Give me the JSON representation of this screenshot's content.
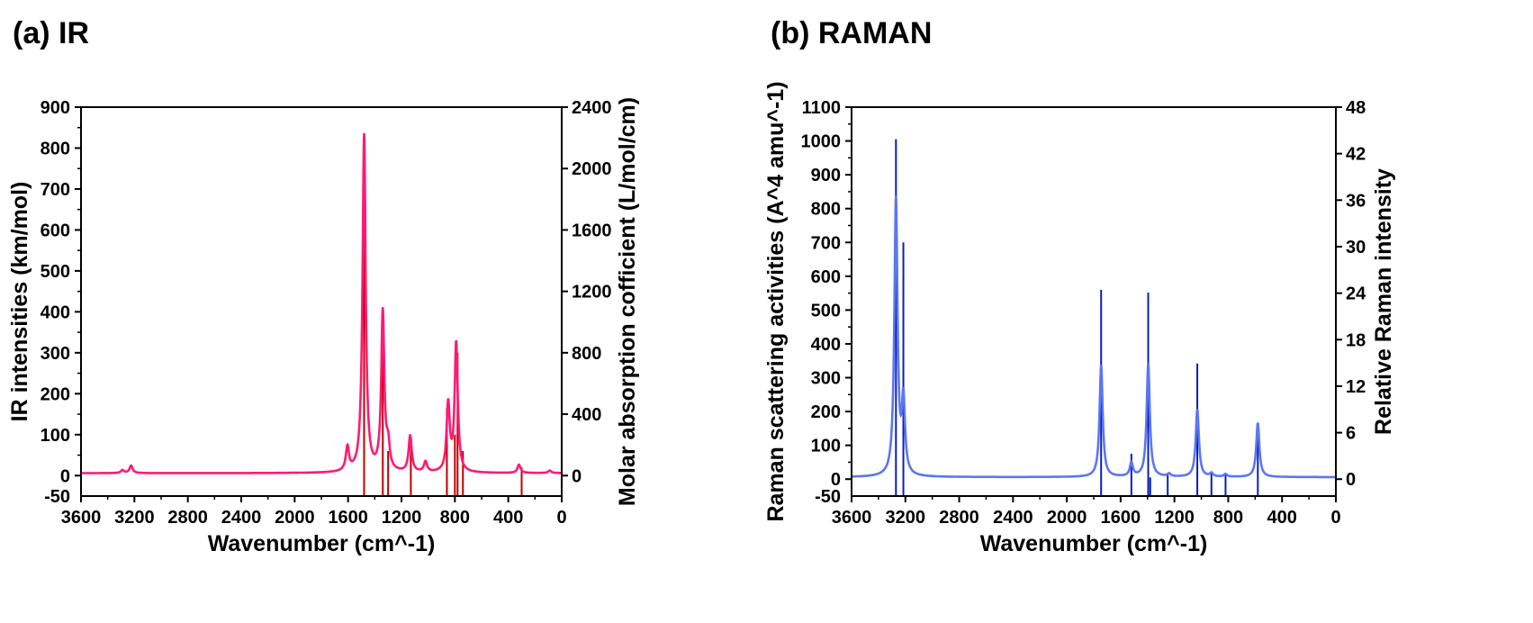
{
  "panels": {
    "a_label": "(a) IR",
    "b_label": "(b) RAMAN"
  },
  "chart_data": [
    {
      "type": "line",
      "title": "(a) IR",
      "xlabel": "Wavenumber (cm^-1)",
      "ylabel": "IR intensities (km/mol)",
      "y2label": "Molar absorption cofficient (L/mol/cm)",
      "xlim": [
        3600,
        0
      ],
      "ylim": [
        -50,
        900
      ],
      "y2lim": [
        -133.3,
        2400
      ],
      "xticks": [
        3600,
        3200,
        2800,
        2400,
        2000,
        1600,
        1200,
        800,
        400,
        0
      ],
      "yticks": [
        0,
        100,
        200,
        300,
        400,
        500,
        600,
        700,
        800,
        900
      ],
      "y2ticks": [
        0,
        400,
        800,
        1200,
        1600,
        2000,
        2400
      ],
      "colors": {
        "curve": "#ff1a75",
        "sticks": "#c00000"
      },
      "grid": false,
      "series": [
        {
          "kind": "curve",
          "peaks": [
            {
              "x": 3290,
              "y": 7
            },
            {
              "x": 3225,
              "y": 18
            },
            {
              "x": 1605,
              "y": 58
            },
            {
              "x": 1480,
              "y": 825
            },
            {
              "x": 1340,
              "y": 390
            },
            {
              "x": 1300,
              "y": 55
            },
            {
              "x": 1135,
              "y": 88
            },
            {
              "x": 1020,
              "y": 25
            },
            {
              "x": 850,
              "y": 165
            },
            {
              "x": 790,
              "y": 315
            },
            {
              "x": 320,
              "y": 20
            },
            {
              "x": 90,
              "y": 6
            }
          ]
        },
        {
          "kind": "sticks",
          "x": [
            3290,
            3240,
            1730,
            1605,
            1505,
            1480,
            1430,
            1400,
            1370,
            1340,
            1300,
            1240,
            1215,
            1180,
            1130,
            1080,
            1040,
            1000,
            960,
            860,
            820,
            800,
            780,
            740,
            650,
            600,
            560,
            540,
            360,
            300,
            160,
            90
          ],
          "y": [
            -50,
            -50,
            -50,
            -50,
            -50,
            830,
            -50,
            -50,
            -50,
            400,
            60,
            -50,
            -50,
            -50,
            80,
            -50,
            -50,
            -50,
            -50,
            165,
            -50,
            100,
            300,
            60,
            -50,
            -50,
            -50,
            -50,
            -50,
            20,
            -50,
            -50
          ]
        }
      ]
    },
    {
      "type": "line",
      "title": "(b) RAMAN",
      "xlabel": "Wavenumber (cm^-1)",
      "ylabel": "Raman scattering activities (A^4 amu^-1)",
      "y2label": "Relative Raman intensity",
      "xlim": [
        3600,
        0
      ],
      "ylim": [
        -50,
        1100
      ],
      "y2lim": [
        -2.18,
        48
      ],
      "xticks": [
        3600,
        3200,
        2800,
        2400,
        2000,
        1600,
        1200,
        800,
        400,
        0
      ],
      "yticks": [
        0,
        100,
        200,
        300,
        400,
        500,
        600,
        700,
        800,
        900,
        1000,
        1100
      ],
      "y2ticks": [
        0,
        6,
        12,
        18,
        24,
        30,
        36,
        42,
        48
      ],
      "colors": {
        "curve": "#5c77f0",
        "sticks": "#0b1fb5"
      },
      "grid": false,
      "series": [
        {
          "kind": "curve",
          "peaks": [
            {
              "x": 3270,
              "y": 820
            },
            {
              "x": 3215,
              "y": 215
            },
            {
              "x": 1745,
              "y": 330
            },
            {
              "x": 1520,
              "y": 40
            },
            {
              "x": 1395,
              "y": 335
            },
            {
              "x": 1240,
              "y": 8
            },
            {
              "x": 1030,
              "y": 200
            },
            {
              "x": 925,
              "y": 10
            },
            {
              "x": 820,
              "y": 8
            },
            {
              "x": 580,
              "y": 160
            }
          ]
        },
        {
          "kind": "sticks",
          "x": [
            3270,
            3215,
            1745,
            1610,
            1520,
            1495,
            1395,
            1380,
            1340,
            1310,
            1250,
            1230,
            1150,
            1100,
            1030,
            1000,
            970,
            925,
            860,
            840,
            820,
            800,
            680,
            620,
            580,
            380,
            290,
            170,
            90
          ],
          "y": [
            1005,
            700,
            560,
            -50,
            75,
            -50,
            552,
            5,
            -50,
            -50,
            15,
            -50,
            -50,
            -50,
            342,
            -50,
            -50,
            20,
            -50,
            -50,
            15,
            -50,
            -50,
            -50,
            165,
            -50,
            -50,
            -50,
            -50
          ]
        }
      ]
    }
  ]
}
